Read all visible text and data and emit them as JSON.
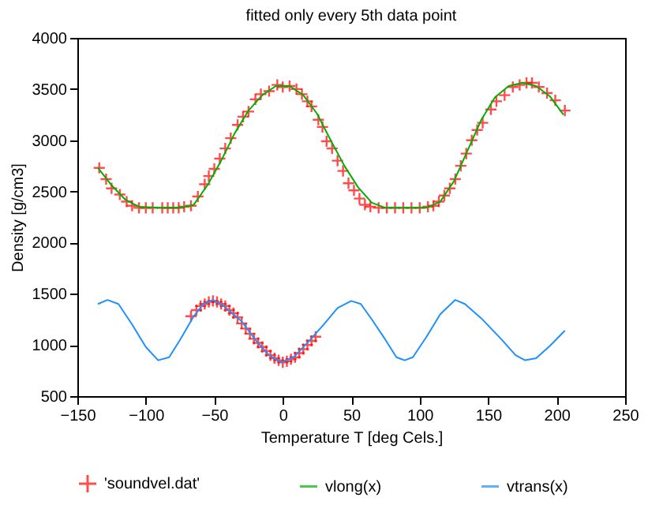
{
  "chart_data": {
    "type": "line",
    "title": "fitted only every 5th data point",
    "xlabel": "Temperature T  [deg Cels.]",
    "ylabel": "Density [g/cm3]",
    "xlim": [
      -150,
      250
    ],
    "xticks": [
      -150,
      -100,
      -50,
      0,
      50,
      100,
      150,
      200,
      250
    ],
    "ylim": [
      500,
      4000
    ],
    "yticks": [
      500,
      1000,
      1500,
      2000,
      2500,
      3000,
      3500,
      4000
    ],
    "grid": false,
    "legend": "bottom",
    "line_style": "solid",
    "series": [
      {
        "name": "'soundvel.dat'",
        "type": "scatter",
        "marker": "cross",
        "color": "#ff0000",
        "x": [
          -134,
          -129,
          -125,
          -119,
          -114,
          -110,
          -105,
          -100,
          -95,
          -88,
          -84,
          -80,
          -76,
          -72,
          -67,
          -62,
          -57,
          -54,
          -50,
          -46,
          -42,
          -38,
          -33,
          -29,
          -25,
          -20,
          -16,
          -10,
          -4,
          0,
          5,
          10,
          14,
          18,
          21,
          26,
          29,
          32,
          36,
          40,
          44,
          48,
          52,
          56,
          60,
          64,
          70,
          76,
          82,
          88,
          94,
          100,
          106,
          110,
          114,
          118,
          122,
          126,
          130,
          134,
          138,
          142,
          146,
          152,
          156,
          162,
          168,
          173,
          178,
          182,
          187,
          193,
          199,
          206,
          -67,
          -63,
          -60,
          -57,
          -54,
          -51,
          -48,
          -45,
          -42,
          -39,
          -36,
          -33,
          -30,
          -27,
          -24,
          -21,
          -18,
          -15,
          -12,
          -9,
          -6,
          -3,
          0,
          3,
          6,
          9,
          12,
          15,
          18,
          21,
          24
        ],
        "values": [
          2730,
          2620,
          2530,
          2470,
          2400,
          2360,
          2340,
          2340,
          2340,
          2340,
          2340,
          2340,
          2340,
          2350,
          2360,
          2450,
          2570,
          2650,
          2720,
          2820,
          2920,
          3020,
          3150,
          3230,
          3280,
          3400,
          3450,
          3480,
          3540,
          3520,
          3530,
          3500,
          3450,
          3380,
          3330,
          3200,
          3130,
          2990,
          2920,
          2800,
          2700,
          2580,
          2510,
          2430,
          2370,
          2350,
          2340,
          2340,
          2340,
          2340,
          2340,
          2340,
          2350,
          2360,
          2400,
          2460,
          2530,
          2620,
          2750,
          2870,
          3000,
          3100,
          3170,
          3300,
          3380,
          3440,
          3520,
          3540,
          3560,
          3560,
          3520,
          3460,
          3390,
          3290,
          1280,
          1340,
          1380,
          1400,
          1420,
          1430,
          1420,
          1400,
          1380,
          1340,
          1310,
          1270,
          1210,
          1160,
          1110,
          1060,
          1020,
          980,
          940,
          900,
          870,
          850,
          830,
          840,
          860,
          880,
          920,
          960,
          1000,
          1040,
          1080
        ]
      },
      {
        "name": "vlong(x)",
        "color": "#00b000",
        "x": [
          -135,
          -125,
          -115,
          -105,
          -90,
          -75,
          -65,
          -55,
          -45,
          -35,
          -25,
          -15,
          -5,
          5,
          15,
          25,
          35,
          45,
          55,
          65,
          75,
          90,
          105,
          115,
          125,
          135,
          145,
          155,
          165,
          175,
          185,
          195,
          205
        ],
        "values": [
          2730,
          2560,
          2420,
          2350,
          2340,
          2340,
          2370,
          2560,
          2800,
          3070,
          3290,
          3440,
          3530,
          3530,
          3440,
          3260,
          3000,
          2750,
          2540,
          2390,
          2340,
          2340,
          2340,
          2400,
          2600,
          2900,
          3200,
          3420,
          3530,
          3560,
          3530,
          3430,
          3250
        ]
      },
      {
        "name": "vtrans(x)",
        "color": "#1e90ff",
        "x": [
          -135,
          -128,
          -120,
          -110,
          -100,
          -91,
          -83,
          -75,
          -65,
          -58,
          -51,
          -43,
          -30,
          -20,
          -10,
          -1,
          8,
          20,
          30,
          40,
          50,
          57,
          65,
          75,
          83,
          89,
          95,
          105,
          115,
          126,
          133,
          145,
          160,
          170,
          177,
          185,
          195,
          206
        ],
        "values": [
          1400,
          1440,
          1400,
          1200,
          980,
          850,
          880,
          1050,
          1280,
          1400,
          1440,
          1380,
          1230,
          1050,
          900,
          830,
          880,
          1050,
          1200,
          1360,
          1430,
          1400,
          1250,
          1050,
          880,
          850,
          880,
          1080,
          1300,
          1440,
          1400,
          1260,
          1050,
          900,
          850,
          870,
          990,
          1140
        ]
      }
    ]
  }
}
